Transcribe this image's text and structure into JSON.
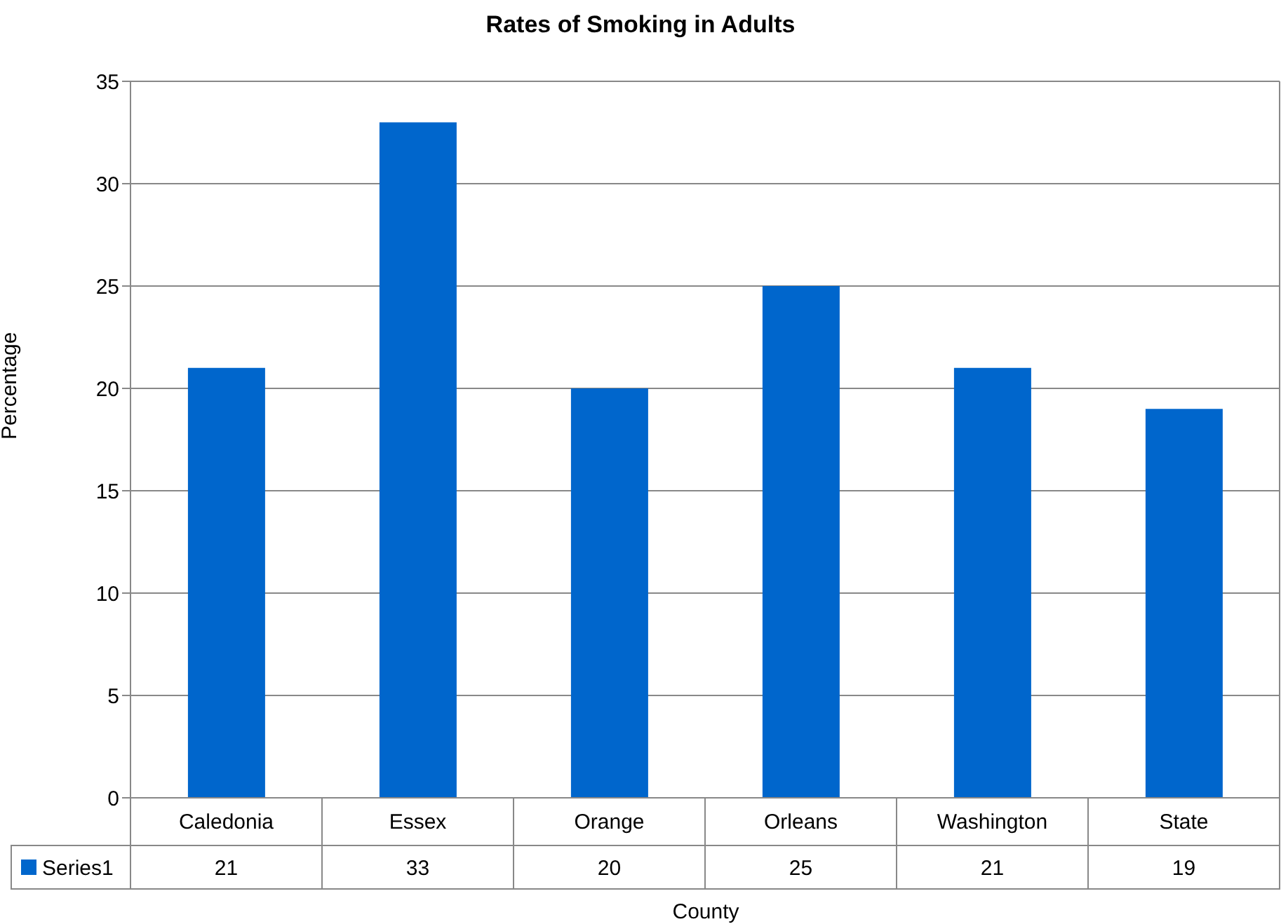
{
  "chart_data": {
    "type": "bar",
    "title": "Rates of Smoking in Adults",
    "xlabel": "County",
    "ylabel": "Percentage",
    "categories": [
      "Caledonia",
      "Essex",
      "Orange",
      "Orleans",
      "Washington",
      "State"
    ],
    "series": [
      {
        "name": "Series1",
        "color": "#0066cc",
        "values": [
          21,
          33,
          20,
          25,
          21,
          19
        ]
      }
    ],
    "ylim": [
      0,
      35
    ],
    "yticks": [
      0,
      5,
      10,
      15,
      20,
      25,
      30,
      35
    ],
    "grid": "y",
    "legend": "bottom",
    "data_labels": true
  }
}
